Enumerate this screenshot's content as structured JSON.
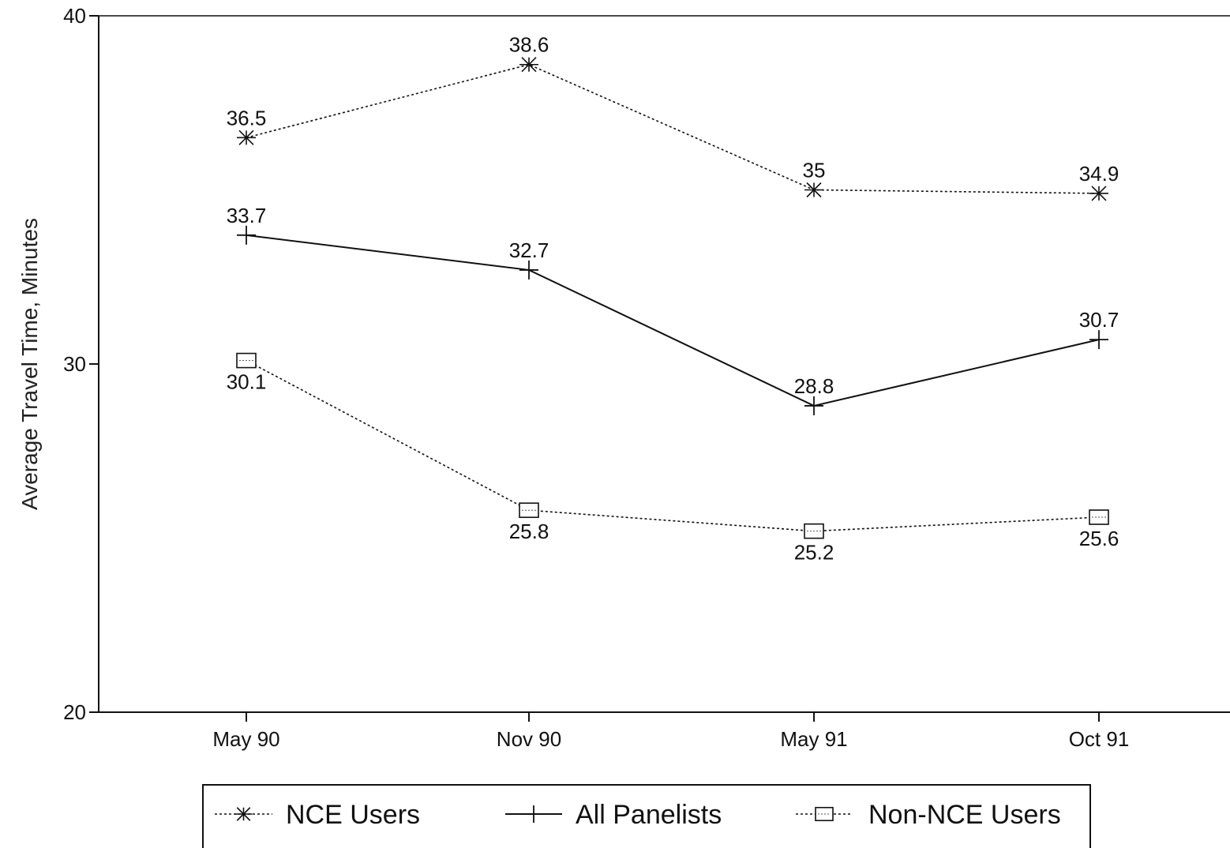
{
  "chart_data": {
    "type": "line",
    "title": "",
    "xlabel": "",
    "ylabel": "Average Travel Time, Minutes",
    "categories": [
      "May 90",
      "Nov 90",
      "May 91",
      "Oct 91"
    ],
    "ylim": [
      20,
      40
    ],
    "yticks": [
      20,
      30,
      40
    ],
    "grid": false,
    "legend_position": "bottom",
    "series": [
      {
        "name": "NCE Users",
        "values": [
          36.5,
          38.6,
          35,
          34.9
        ],
        "value_labels": [
          "36.5",
          "38.6",
          "35",
          "34.9"
        ],
        "marker": "asterisk",
        "line": "dotted",
        "label_side": "above"
      },
      {
        "name": "All Panelists",
        "values": [
          33.7,
          32.7,
          28.8,
          30.7
        ],
        "value_labels": [
          "33.7",
          "32.7",
          "28.8",
          "30.7"
        ],
        "marker": "plus",
        "line": "solid",
        "label_side": "above"
      },
      {
        "name": "Non-NCE Users",
        "values": [
          30.1,
          25.8,
          25.2,
          25.6
        ],
        "value_labels": [
          "30.1",
          "25.8",
          "25.2",
          "25.6"
        ],
        "marker": "square",
        "line": "dotted",
        "label_side": "below"
      }
    ]
  }
}
